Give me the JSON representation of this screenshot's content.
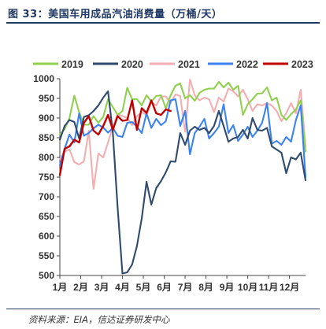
{
  "figure": {
    "title": "图 33：美国车用成品汽油消费量（万桶/天）",
    "source": "资料来源：EIA，信达证券研发中心"
  },
  "chart_data": {
    "type": "line",
    "xlabel": "",
    "ylabel": "",
    "ylim": [
      500,
      1000
    ],
    "yticks": [
      500,
      550,
      600,
      650,
      700,
      750,
      800,
      850,
      900,
      950,
      1000
    ],
    "xticks": [
      "1月",
      "2月",
      "3月",
      "4月",
      "5月",
      "6月",
      "7月",
      "8月",
      "9月",
      "10月",
      "11月",
      "12月"
    ],
    "x_range": [
      1,
      52
    ],
    "grid": false,
    "legend_position": "top",
    "colors": {
      "2019": "#8fd14f",
      "2020": "#2e4a6e",
      "2021": "#f4aeb1",
      "2022": "#3b82f0",
      "2023": "#c00000"
    },
    "series": [
      {
        "name": "2019",
        "values": [
          858,
          872,
          900,
          957,
          915,
          883,
          883,
          905,
          888,
          903,
          948,
          928,
          908,
          918,
          977,
          948,
          948,
          932,
          958,
          942,
          956,
          958,
          925,
          958,
          982,
          988,
          950,
          958,
          944,
          964,
          972,
          975,
          975,
          992,
          978,
          990,
          972,
          982,
          908,
          935,
          948,
          962,
          963,
          978,
          945,
          952,
          908,
          895,
          910,
          922,
          945,
          815
        ]
      },
      {
        "name": "2020",
        "values": [
          845,
          880,
          895,
          890,
          848,
          903,
          907,
          918,
          932,
          952,
          968,
          863,
          672,
          505,
          508,
          528,
          575,
          645,
          738,
          680,
          722,
          740,
          762,
          790,
          789,
          862,
          832,
          868,
          878,
          870,
          875,
          862,
          880,
          918,
          880,
          840,
          848,
          852,
          870,
          848,
          900,
          870,
          868,
          875,
          828,
          820,
          812,
          760,
          800,
          795,
          812,
          742
        ]
      },
      {
        "name": "2021",
        "values": [
          795,
          815,
          820,
          788,
          782,
          790,
          868,
          720,
          810,
          800,
          838,
          878,
          910,
          905,
          900,
          882,
          905,
          915,
          908,
          940,
          932,
          955,
          955,
          938,
          960,
          956,
          865,
          998,
          958,
          945,
          952,
          948,
          915,
          952,
          942,
          975,
          968,
          955,
          972,
          948,
          918,
          935,
          932,
          938,
          932,
          918,
          892,
          912,
          938,
          912,
          972,
          828
        ]
      },
      {
        "name": "2022",
        "values": [
          780,
          822,
          858,
          838,
          912,
          855,
          862,
          874,
          883,
          876,
          863,
          875,
          855,
          852,
          888,
          890,
          878,
          862,
          912,
          875,
          898,
          882,
          892,
          945,
          948,
          880,
          918,
          808,
          862,
          878,
          898,
          848,
          862,
          878,
          935,
          862,
          882,
          842,
          858,
          878,
          852,
          868,
          888,
          938,
          835,
          842,
          832,
          852,
          840,
          895,
          932,
          750
        ]
      },
      {
        "name": "2023",
        "values": [
          755,
          822,
          828,
          845,
          838,
          888,
          905,
          868,
          858,
          880,
          908,
          870,
          905,
          893,
          895,
          945,
          870,
          925,
          913,
          945,
          912,
          908,
          922,
          918
        ]
      }
    ]
  }
}
